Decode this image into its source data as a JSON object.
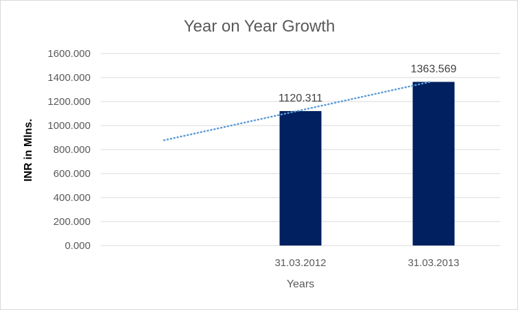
{
  "chart_data": {
    "type": "bar",
    "title": "Year on Year Growth",
    "xlabel": "Years",
    "ylabel": "INR in Mlns.",
    "categories": [
      "",
      "31.03.2012",
      "31.03.2013"
    ],
    "values": [
      null,
      1120.311,
      1363.569
    ],
    "data_labels": [
      "",
      "1120.311",
      "1363.569"
    ],
    "ylim": [
      0,
      1600
    ],
    "yticks": [
      0,
      200,
      400,
      600,
      800,
      1000,
      1200,
      1400,
      1600
    ],
    "ytick_labels": [
      "0.000",
      "200.000",
      "400.000",
      "600.000",
      "800.000",
      "1000.000",
      "1200.000",
      "1400.000",
      "1600.000"
    ],
    "grid": true,
    "legend": "none",
    "trendline": {
      "type": "linear",
      "style": "dotted",
      "color": "#5b9bd5"
    },
    "colors": {
      "bar": "#002060",
      "trendline": "#5b9bd5"
    }
  }
}
